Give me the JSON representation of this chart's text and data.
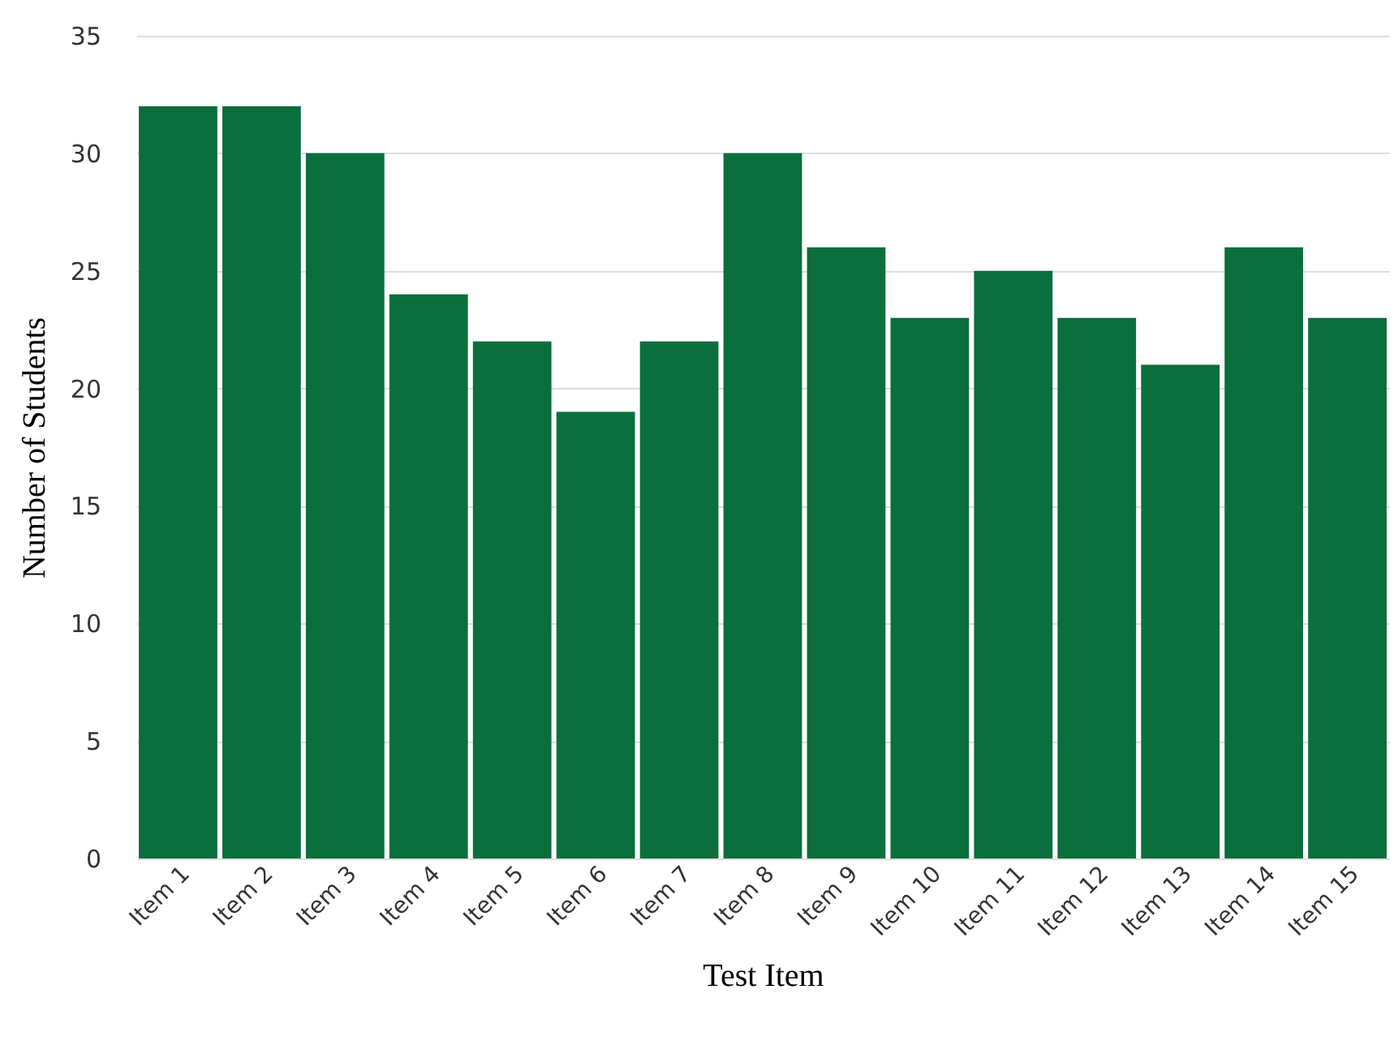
{
  "chart_data": {
    "type": "bar",
    "xlabel": "Test Item",
    "ylabel": "Number of Students",
    "categories": [
      "Item 1",
      "Item 2",
      "Item 3",
      "Item 4",
      "Item 5",
      "Item 6",
      "Item 7",
      "Item 8",
      "Item 9",
      "Item 10",
      "Item 11",
      "Item 12",
      "Item 13",
      "Item 14",
      "Item 15"
    ],
    "values": [
      32,
      32,
      30,
      24,
      22,
      19,
      22,
      30,
      26,
      23,
      25,
      23,
      21,
      26,
      23
    ],
    "color": "#0b6e3d",
    "ylim": [
      0,
      35
    ],
    "yticks": [
      0,
      5,
      10,
      15,
      20,
      25,
      30,
      35
    ],
    "grid": "y"
  }
}
